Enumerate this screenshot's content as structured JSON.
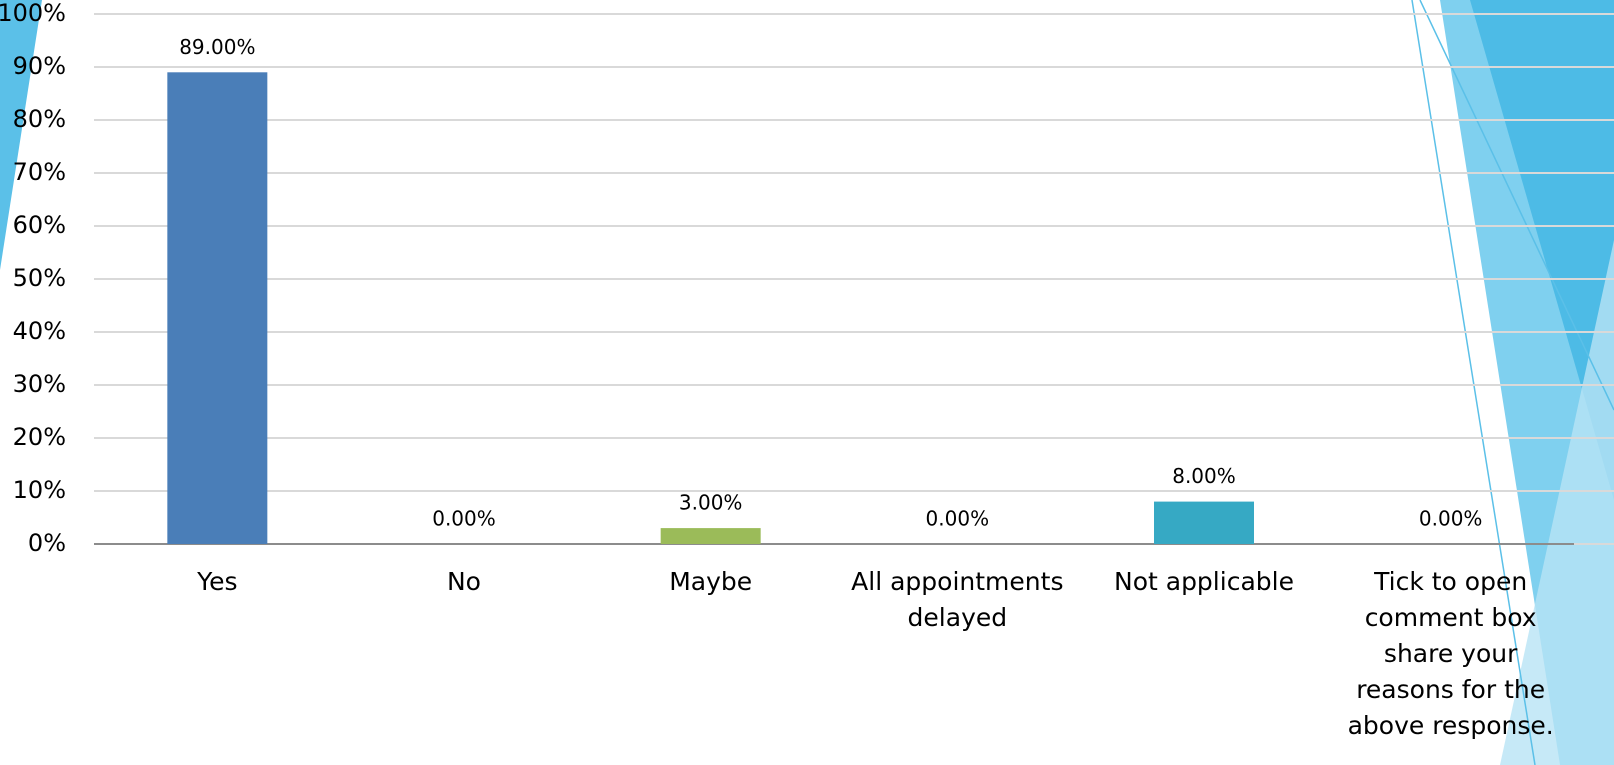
{
  "chart_data": {
    "type": "bar",
    "categories": [
      "Yes",
      "No",
      "Maybe",
      "All appointments delayed",
      "Not applicable",
      "Tick to open comment box share your reasons for the above response."
    ],
    "values": [
      89,
      0,
      3,
      0,
      8,
      0
    ],
    "value_labels": [
      "89.00%",
      "0.00%",
      "3.00%",
      "0.00%",
      "8.00%",
      "0.00%"
    ],
    "colors": [
      "#4a7eb8",
      "#4a7eb8",
      "#9bbb59",
      "#4a7eb8",
      "#36a9c4",
      "#4a7eb8"
    ],
    "ylim": [
      0,
      100
    ],
    "yticks": [
      {
        "value": 0,
        "label": "0%"
      },
      {
        "value": 10,
        "label": "10%"
      },
      {
        "value": 20,
        "label": "20%"
      },
      {
        "value": 30,
        "label": "30%"
      },
      {
        "value": 40,
        "label": "40%"
      },
      {
        "value": 50,
        "label": "50%"
      },
      {
        "value": 60,
        "label": "60%"
      },
      {
        "value": 70,
        "label": "70%"
      },
      {
        "value": 80,
        "label": "80%"
      },
      {
        "value": 90,
        "label": "90%"
      },
      {
        "value": 100,
        "label": "100%"
      }
    ],
    "grid": true
  }
}
